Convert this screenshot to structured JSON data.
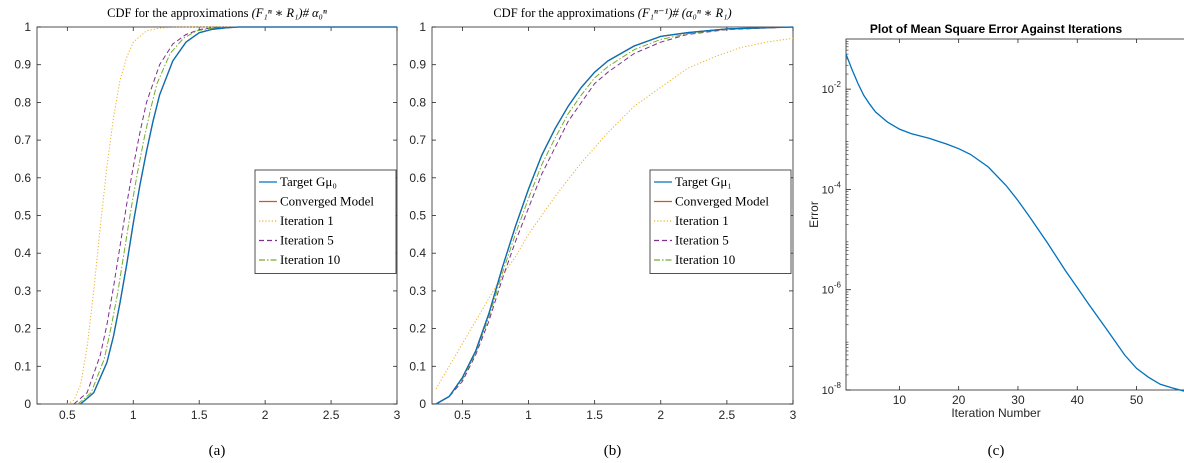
{
  "colors": {
    "target": "#0072bd",
    "converged": "#d95319",
    "iter1": "#edb120",
    "iter5": "#7e2f8e",
    "iter10": "#77ac30",
    "axis": "#262626",
    "title_sans": "#000000"
  },
  "panels": {
    "a": {
      "caption": "(a)",
      "title_prefix": "CDF for the approximations ",
      "title_math": "(F₁ⁿ ∗ R₁)# α₀ⁿ",
      "legend": [
        "Target Gμ₀",
        "Converged Model",
        "Iteration 1",
        "Iteration 5",
        "Iteration 10"
      ]
    },
    "b": {
      "caption": "(b)",
      "title_prefix": "CDF for the approximations ",
      "title_math": "(F₁ⁿ⁻¹)# (α₀ⁿ ∗ R₁)",
      "legend": [
        "Target Gμ₁",
        "Converged Model",
        "Iteration 1",
        "Iteration 5",
        "Iteration 10"
      ]
    },
    "c": {
      "caption": "(c)"
    }
  },
  "chart_data": [
    {
      "type": "line",
      "title": "CDF for the approximations (F1^n * R1)# α0^n",
      "xlabel": "",
      "ylabel": "",
      "xlim": [
        0.27,
        3
      ],
      "ylim": [
        0,
        1
      ],
      "xticks": [
        "0.5",
        "1",
        "1.5",
        "2",
        "2.5",
        "3"
      ],
      "xtick_values": [
        0.5,
        1,
        1.5,
        2,
        2.5,
        3
      ],
      "yticks": [
        "0",
        "0.1",
        "0.2",
        "0.3",
        "0.4",
        "0.5",
        "0.6",
        "0.7",
        "0.8",
        "0.9",
        "1"
      ],
      "ytick_values": [
        0,
        0.1,
        0.2,
        0.3,
        0.4,
        0.5,
        0.6,
        0.7,
        0.8,
        0.9,
        1
      ],
      "legend_position": "center-right",
      "series": [
        {
          "name": "Target Gμ0",
          "style": "solid",
          "x": [
            0.6,
            0.7,
            0.8,
            0.85,
            0.9,
            0.95,
            1.0,
            1.05,
            1.1,
            1.15,
            1.2,
            1.3,
            1.4,
            1.5,
            1.6,
            1.7,
            1.8,
            2.0,
            3.0
          ],
          "y": [
            0.0,
            0.03,
            0.11,
            0.18,
            0.27,
            0.37,
            0.48,
            0.58,
            0.67,
            0.75,
            0.82,
            0.91,
            0.96,
            0.985,
            0.994,
            0.998,
            1.0,
            1.0,
            1.0
          ]
        },
        {
          "name": "Converged Model",
          "style": "solid",
          "x": [
            0.6,
            0.7,
            0.8,
            0.85,
            0.9,
            0.95,
            1.0,
            1.05,
            1.1,
            1.15,
            1.2,
            1.3,
            1.4,
            1.5,
            1.6,
            1.7,
            1.8,
            2.0,
            3.0
          ],
          "y": [
            0.0,
            0.03,
            0.11,
            0.18,
            0.27,
            0.37,
            0.48,
            0.58,
            0.67,
            0.75,
            0.82,
            0.91,
            0.96,
            0.985,
            0.994,
            0.998,
            1.0,
            1.0,
            1.0
          ]
        },
        {
          "name": "Iteration 1",
          "style": "dotted",
          "x": [
            0.5,
            0.55,
            0.6,
            0.65,
            0.7,
            0.75,
            0.8,
            0.85,
            0.9,
            0.95,
            1.0,
            1.1,
            1.2,
            1.3,
            1.4,
            1.6,
            3.0
          ],
          "y": [
            0.0,
            0.01,
            0.05,
            0.15,
            0.3,
            0.47,
            0.63,
            0.76,
            0.86,
            0.92,
            0.96,
            0.99,
            0.997,
            0.999,
            1.0,
            1.0,
            1.0
          ]
        },
        {
          "name": "Iteration 5",
          "style": "dashed",
          "x": [
            0.55,
            0.65,
            0.75,
            0.8,
            0.85,
            0.9,
            0.95,
            1.0,
            1.05,
            1.1,
            1.2,
            1.3,
            1.4,
            1.5,
            1.6,
            1.8,
            3.0
          ],
          "y": [
            0.0,
            0.03,
            0.13,
            0.21,
            0.31,
            0.42,
            0.53,
            0.63,
            0.72,
            0.8,
            0.9,
            0.955,
            0.98,
            0.993,
            0.998,
            1.0,
            1.0
          ]
        },
        {
          "name": "Iteration 10",
          "style": "dashdot",
          "x": [
            0.58,
            0.68,
            0.78,
            0.83,
            0.88,
            0.93,
            0.98,
            1.03,
            1.08,
            1.13,
            1.18,
            1.28,
            1.38,
            1.48,
            1.58,
            1.78,
            3.0
          ],
          "y": [
            0.0,
            0.03,
            0.12,
            0.2,
            0.29,
            0.4,
            0.51,
            0.61,
            0.7,
            0.78,
            0.85,
            0.93,
            0.97,
            0.99,
            0.996,
            1.0,
            1.0
          ]
        }
      ]
    },
    {
      "type": "line",
      "title": "CDF for the approximations (F1^(n-1))# (α0^n * R1)",
      "xlabel": "",
      "ylabel": "",
      "xlim": [
        0.27,
        3
      ],
      "ylim": [
        0,
        1
      ],
      "xticks": [
        "0.5",
        "1",
        "1.5",
        "2",
        "2.5",
        "3"
      ],
      "xtick_values": [
        0.5,
        1,
        1.5,
        2,
        2.5,
        3
      ],
      "yticks": [
        "0",
        "0.1",
        "0.2",
        "0.3",
        "0.4",
        "0.5",
        "0.6",
        "0.7",
        "0.8",
        "0.9",
        "1"
      ],
      "ytick_values": [
        0,
        0.1,
        0.2,
        0.3,
        0.4,
        0.5,
        0.6,
        0.7,
        0.8,
        0.9,
        1
      ],
      "legend_position": "center-right",
      "series": [
        {
          "name": "Target Gμ1",
          "style": "solid",
          "x": [
            0.3,
            0.4,
            0.5,
            0.6,
            0.7,
            0.8,
            0.9,
            1.0,
            1.1,
            1.2,
            1.3,
            1.4,
            1.5,
            1.6,
            1.8,
            2.0,
            2.2,
            2.5,
            3.0
          ],
          "y": [
            0.0,
            0.02,
            0.07,
            0.14,
            0.24,
            0.36,
            0.47,
            0.57,
            0.66,
            0.73,
            0.79,
            0.84,
            0.88,
            0.91,
            0.95,
            0.975,
            0.985,
            0.995,
            1.0
          ]
        },
        {
          "name": "Converged Model",
          "style": "solid",
          "x": [
            0.3,
            0.4,
            0.5,
            0.6,
            0.7,
            0.8,
            0.9,
            1.0,
            1.1,
            1.2,
            1.3,
            1.4,
            1.5,
            1.6,
            1.8,
            2.0,
            2.2,
            2.5,
            3.0
          ],
          "y": [
            0.0,
            0.02,
            0.07,
            0.14,
            0.24,
            0.36,
            0.47,
            0.57,
            0.66,
            0.73,
            0.79,
            0.84,
            0.88,
            0.91,
            0.95,
            0.975,
            0.985,
            0.995,
            1.0
          ]
        },
        {
          "name": "Iteration 1",
          "style": "dotted",
          "x": [
            0.3,
            0.4,
            0.5,
            0.6,
            0.7,
            0.8,
            0.9,
            1.0,
            1.2,
            1.4,
            1.6,
            1.8,
            2.0,
            2.2,
            2.4,
            2.6,
            2.8,
            3.0
          ],
          "y": [
            0.04,
            0.1,
            0.16,
            0.22,
            0.28,
            0.34,
            0.39,
            0.45,
            0.55,
            0.64,
            0.72,
            0.79,
            0.84,
            0.89,
            0.92,
            0.945,
            0.96,
            0.97
          ]
        },
        {
          "name": "Iteration 5",
          "style": "dashed",
          "x": [
            0.3,
            0.4,
            0.5,
            0.6,
            0.7,
            0.8,
            0.9,
            1.0,
            1.1,
            1.2,
            1.3,
            1.4,
            1.5,
            1.6,
            1.8,
            2.0,
            2.2,
            2.5,
            3.0
          ],
          "y": [
            0.0,
            0.02,
            0.06,
            0.13,
            0.22,
            0.33,
            0.43,
            0.52,
            0.61,
            0.68,
            0.75,
            0.8,
            0.85,
            0.88,
            0.93,
            0.96,
            0.98,
            0.993,
            1.0
          ]
        },
        {
          "name": "Iteration 10",
          "style": "dashdot",
          "x": [
            0.3,
            0.4,
            0.5,
            0.6,
            0.7,
            0.8,
            0.9,
            1.0,
            1.1,
            1.2,
            1.3,
            1.4,
            1.5,
            1.6,
            1.8,
            2.0,
            2.2,
            2.5,
            3.0
          ],
          "y": [
            0.0,
            0.02,
            0.065,
            0.135,
            0.23,
            0.345,
            0.45,
            0.545,
            0.635,
            0.705,
            0.77,
            0.82,
            0.865,
            0.895,
            0.94,
            0.967,
            0.982,
            0.994,
            1.0
          ]
        }
      ]
    },
    {
      "type": "line",
      "title": "Plot of Mean Square Error Against Iterations",
      "xlabel": "Iteration Number",
      "ylabel": "Error",
      "xlim": [
        1,
        58
      ],
      "ylim": [
        1e-08,
        0.1
      ],
      "yscale": "log",
      "xticks": [
        "10",
        "20",
        "30",
        "40",
        "50"
      ],
      "xtick_values": [
        10,
        20,
        30,
        40,
        50
      ],
      "yticks": [
        "10-8",
        "10-6",
        "10-4",
        "10-2"
      ],
      "ytick_values": [
        1e-08,
        1e-06,
        0.0001,
        0.01
      ],
      "series": [
        {
          "name": "",
          "x": [
            1,
            2,
            3,
            4,
            5,
            6,
            8,
            10,
            12,
            15,
            18,
            20,
            22,
            25,
            28,
            30,
            32,
            35,
            38,
            40,
            42,
            45,
            48,
            50,
            52,
            54,
            56,
            58
          ],
          "y": [
            0.05,
            0.025,
            0.013,
            0.0075,
            0.005,
            0.0035,
            0.0022,
            0.0016,
            0.0013,
            0.00105,
            0.0008,
            0.00065,
            0.0005,
            0.00028,
            0.00012,
            6e-05,
            2.8e-05,
            8.5e-06,
            2.4e-06,
            1.1e-06,
            5e-07,
            1.6e-07,
            5e-08,
            2.7e-08,
            1.8e-08,
            1.3e-08,
            1.1e-08,
            9.5e-09
          ]
        }
      ]
    }
  ]
}
